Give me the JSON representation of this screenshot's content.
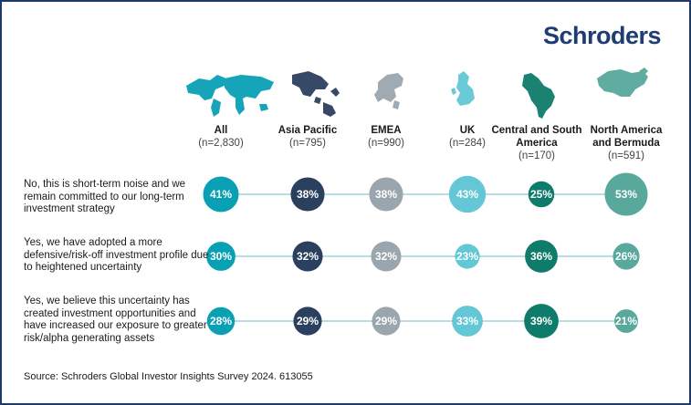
{
  "brand": {
    "logo_text": "Schroders"
  },
  "colors": {
    "line": "#9fd3dc",
    "regions": [
      "#0aa0b4",
      "#2b3f5e",
      "#9aa5ae",
      "#63c7d6",
      "#0f7b6a",
      "#58a89c"
    ]
  },
  "icons": [
    "world-map-icon",
    "asia-pacific-map-icon",
    "emea-map-icon",
    "uk-map-icon",
    "central-south-america-map-icon",
    "north-america-map-icon"
  ],
  "chart_data": {
    "type": "bubble-matrix",
    "categories": [
      {
        "name": "All",
        "n": "(n=2,830)"
      },
      {
        "name": "Asia Pacific",
        "n": "(n=795)"
      },
      {
        "name": "EMEA",
        "n": "(n=990)"
      },
      {
        "name": "UK",
        "n": "(n=284)"
      },
      {
        "name": "Central and South America",
        "n": "(n=170)"
      },
      {
        "name": "North America and Bermuda",
        "n": "(n=591)"
      }
    ],
    "series": [
      {
        "name": "No, this is short-term noise and we remain committed to our long-term investment strategy",
        "values": [
          41,
          38,
          38,
          43,
          25,
          53
        ]
      },
      {
        "name": "Yes, we have adopted a more defensive/risk-off investment profile due to heightened uncertainty",
        "values": [
          30,
          32,
          32,
          23,
          36,
          26
        ]
      },
      {
        "name": "Yes, we believe this uncertainty has created investment opportunities and have increased our exposure to greater risk/alpha generating assets",
        "values": [
          28,
          29,
          29,
          33,
          39,
          21
        ]
      }
    ],
    "unit": "%"
  },
  "source": "Source: Schroders Global Investor Insights Survey 2024. 613055"
}
